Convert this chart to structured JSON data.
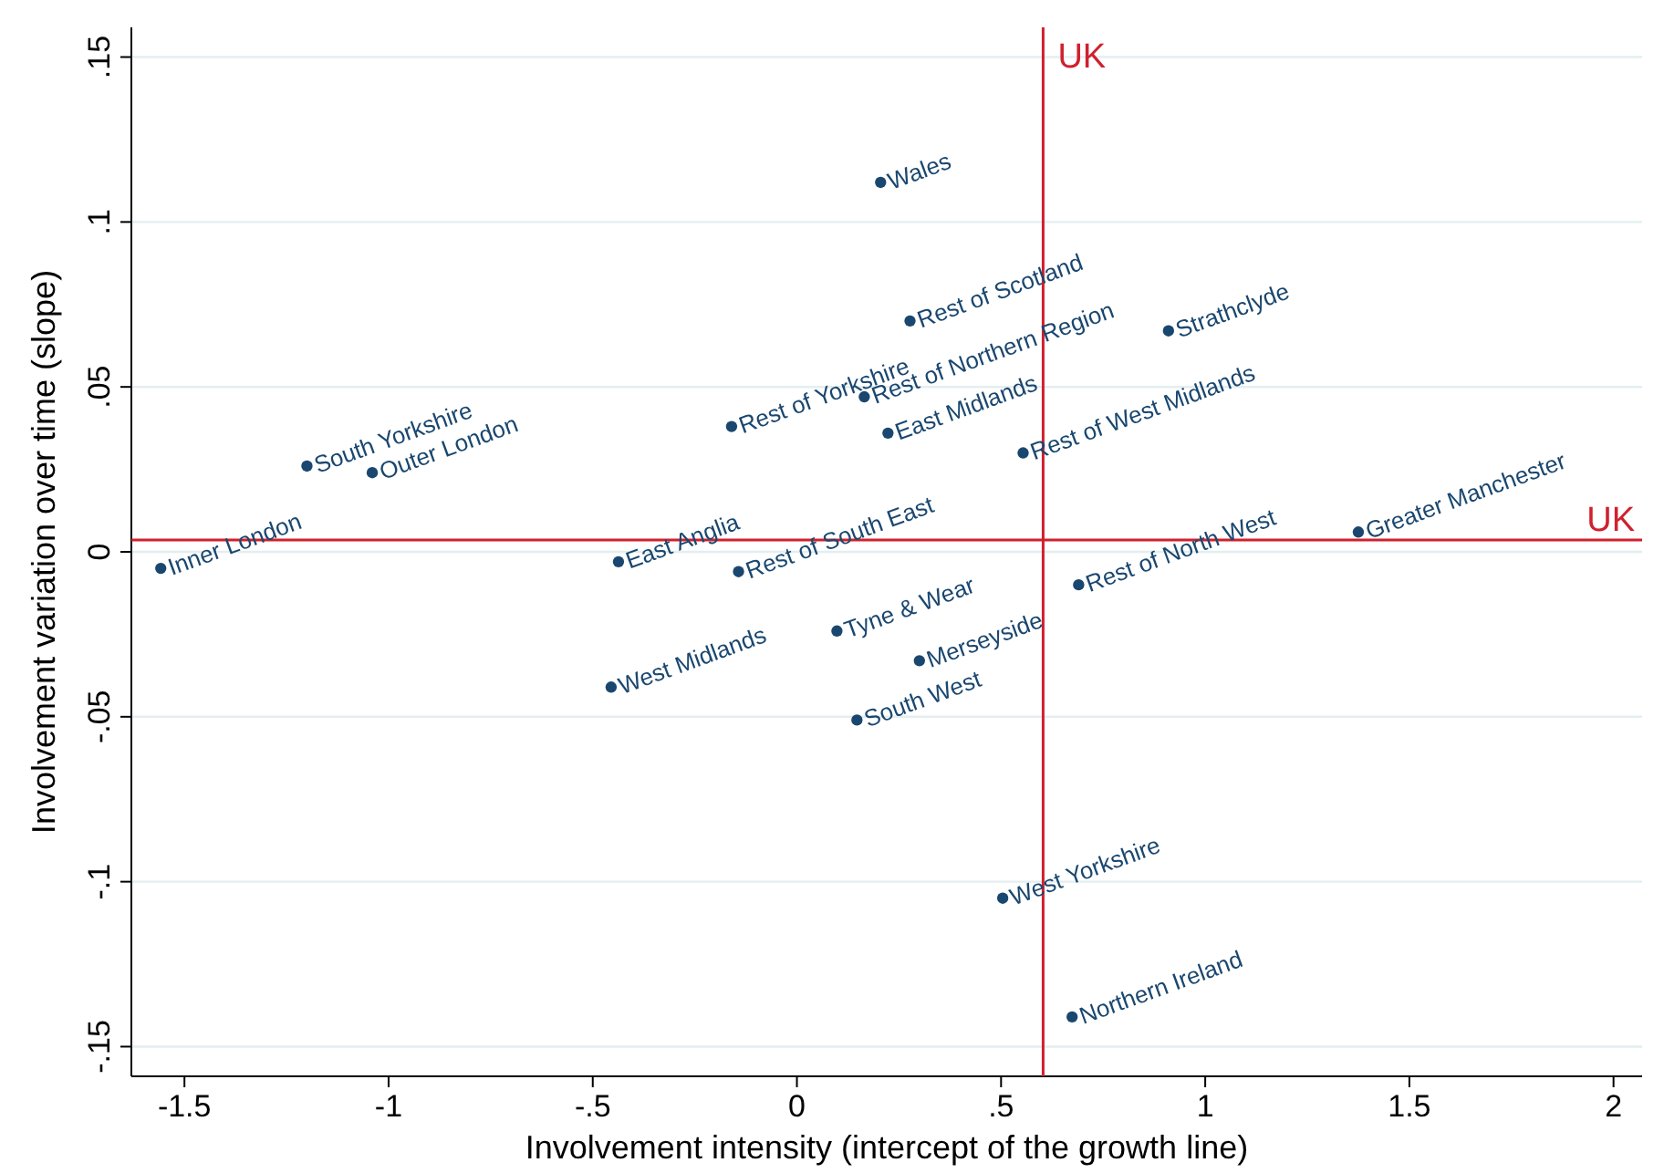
{
  "chart_data": {
    "type": "scatter",
    "xlabel": "Involvement intensity (intercept of the growth line)",
    "ylabel": "Involvement variation over time (slope)",
    "xlim": [
      -1.63,
      2.07
    ],
    "ylim": [
      -0.159,
      0.159
    ],
    "xticks": [
      -1.5,
      -1,
      {
        "value": -0.5,
        "label": "-.5"
      },
      0,
      {
        "value": 0.5,
        "label": ".5"
      },
      1,
      1.5,
      2
    ],
    "yticks": [
      {
        "value": -0.15,
        "label": "-.15"
      },
      {
        "value": -0.1,
        "label": "-.1"
      },
      {
        "value": -0.05,
        "label": "-.05"
      },
      0,
      {
        "value": 0.05,
        "label": ".05"
      },
      {
        "value": 0.1,
        "label": ".1"
      },
      {
        "value": 0.15,
        "label": ".15"
      }
    ],
    "grid": "y",
    "marker": "circle",
    "x": [
      -1.558,
      -1.2,
      -1.04,
      -0.437,
      -0.455,
      -0.143,
      -0.16,
      0.165,
      0.277,
      0.205,
      0.223,
      0.098,
      0.3,
      0.147,
      0.554,
      0.91,
      0.69,
      1.375,
      0.504,
      0.674
    ],
    "series": [
      {
        "color": "#1a476f",
        "values": [
          -0.005,
          0.026,
          0.024,
          -0.003,
          -0.041,
          -0.006,
          0.038,
          0.047,
          0.07,
          0.112,
          0.036,
          -0.024,
          -0.033,
          -0.051,
          0.03,
          0.067,
          -0.01,
          0.006,
          -0.105,
          -0.141
        ]
      }
    ],
    "annotations": [
      {
        "text": "Inner London",
        "x": -1.558,
        "y": -0.005
      },
      {
        "text": "South Yorkshire",
        "x": -1.2,
        "y": 0.026
      },
      {
        "text": "Outer London",
        "x": -1.04,
        "y": 0.024
      },
      {
        "text": "East Anglia",
        "x": -0.437,
        "y": -0.003
      },
      {
        "text": "West Midlands",
        "x": -0.455,
        "y": -0.041
      },
      {
        "text": "Rest of South East",
        "x": -0.143,
        "y": -0.006
      },
      {
        "text": "Rest of Yorkshire",
        "x": -0.16,
        "y": 0.038
      },
      {
        "text": "Rest of Northern Region",
        "x": 0.165,
        "y": 0.047
      },
      {
        "text": "Rest of Scotland",
        "x": 0.277,
        "y": 0.07
      },
      {
        "text": "Wales",
        "x": 0.205,
        "y": 0.112
      },
      {
        "text": "East Midlands",
        "x": 0.223,
        "y": 0.036
      },
      {
        "text": "Tyne & Wear",
        "x": 0.098,
        "y": -0.024
      },
      {
        "text": "Merseyside",
        "x": 0.3,
        "y": -0.033
      },
      {
        "text": "South West",
        "x": 0.147,
        "y": -0.051
      },
      {
        "text": "Rest of West Midlands",
        "x": 0.554,
        "y": 0.03
      },
      {
        "text": "Strathclyde",
        "x": 0.91,
        "y": 0.067
      },
      {
        "text": "Rest of North West",
        "x": 0.69,
        "y": -0.01
      },
      {
        "text": "Greater Manchester",
        "x": 1.375,
        "y": 0.006
      },
      {
        "text": "West Yorkshire",
        "x": 0.504,
        "y": -0.105
      },
      {
        "text": "Northern Ireland",
        "x": 0.674,
        "y": -0.141
      }
    ],
    "ref_lines": [
      {
        "axis": "x",
        "value": 0.603,
        "label": "UK",
        "color": "#d0202e"
      },
      {
        "axis": "y",
        "value": 0.0036,
        "label": "UK",
        "color": "#d0202e"
      }
    ]
  }
}
